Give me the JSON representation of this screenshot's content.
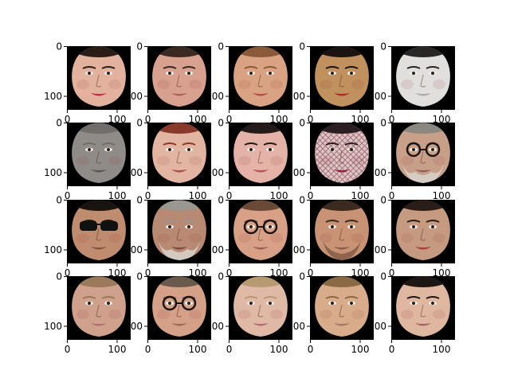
{
  "figure": {
    "background": "#ffffff",
    "panel_background": "#000000",
    "rows": 4,
    "cols": 5,
    "axis_tick_labels": {
      "x": [
        "0",
        "100"
      ],
      "y": [
        "0",
        "100"
      ]
    },
    "panels": [
      {
        "subject": "face",
        "details": "smiling woman, dark hair",
        "skin": "#e2b29e",
        "hair": "#2a1c16",
        "lips": "#c6304a",
        "accessory": "none",
        "sat": 1
      },
      {
        "subject": "face",
        "details": "smiling woman, dark hair",
        "skin": "#d8a08e",
        "hair": "#3a2a22",
        "lips": "#b85a62",
        "accessory": "none",
        "sat": 1
      },
      {
        "subject": "face",
        "details": "smiling woman, light brown hair",
        "skin": "#d9a282",
        "hair": "#8a5a3a",
        "lips": "#b8484a",
        "accessory": "none",
        "sat": 1
      },
      {
        "subject": "face",
        "details": "woman, dark hair, red lips",
        "skin": "#c0905e",
        "hair": "#1c1410",
        "lips": "#b0282e",
        "accessory": "none",
        "sat": 1
      },
      {
        "subject": "face",
        "details": "pale woman",
        "skin": "#e6ddd6",
        "hair": "#2a2624",
        "lips": "#c2a2a0",
        "accessory": "none",
        "sat": 0.2
      },
      {
        "subject": "face",
        "details": "older man, desaturated",
        "skin": "#9a8878",
        "hair": "#7a6a5c",
        "lips": "#6a5248",
        "accessory": "none",
        "sat": 0.2
      },
      {
        "subject": "face",
        "details": "woman, auburn hair",
        "skin": "#e2b4a2",
        "hair": "#8a3a2a",
        "lips": "#b04a4a",
        "accessory": "none",
        "sat": 1
      },
      {
        "subject": "face",
        "details": "smiling woman, dark eye makeup",
        "skin": "#e4b2a6",
        "hair": "#241a18",
        "lips": "#c04a5a",
        "accessory": "none",
        "sat": 1
      },
      {
        "subject": "face",
        "details": "woman with veil, red lips",
        "skin": "#e4c2c4",
        "hair": "#2a2024",
        "lips": "#a01e3c",
        "accessory": "veil",
        "sat": 1
      },
      {
        "subject": "face",
        "details": "man, round glasses, grey beard",
        "skin": "#c8a08a",
        "hair": "#8a8880",
        "lips": "#8a6258",
        "accessory": "glasses-beard",
        "sat": 1
      },
      {
        "subject": "face",
        "details": "man, sunglasses",
        "skin": "#c08c70",
        "hair": "#1a1410",
        "lips": "#8a5040",
        "accessory": "sunglasses",
        "sat": 1
      },
      {
        "subject": "face",
        "details": "man, grey beard",
        "skin": "#b88a74",
        "hair": "#9a9690",
        "lips": "#7a4a40",
        "accessory": "beard",
        "sat": 1
      },
      {
        "subject": "face",
        "details": "man, round glasses",
        "skin": "#d8a086",
        "hair": "#6a4a36",
        "lips": "#9a6050",
        "accessory": "glasses",
        "sat": 1
      },
      {
        "subject": "face",
        "details": "man, stubble",
        "skin": "#c89274",
        "hair": "#3a2a20",
        "lips": "#8a5a4a",
        "accessory": "stubble",
        "sat": 1
      },
      {
        "subject": "face",
        "details": "woman, dark hair, red lips",
        "skin": "#c69a80",
        "hair": "#2a1c16",
        "lips": "#b03a3a",
        "accessory": "none",
        "sat": 1
      },
      {
        "subject": "face",
        "details": "smiling woman, blond hair",
        "skin": "#cfa08c",
        "hair": "#9a7a5a",
        "lips": "#b07070",
        "accessory": "none",
        "sat": 1
      },
      {
        "subject": "face",
        "details": "man, glasses",
        "skin": "#d4a088",
        "hair": "#6a5a4c",
        "lips": "#9a6a5a",
        "accessory": "glasses",
        "sat": 1
      },
      {
        "subject": "face",
        "details": "woman, blond hair",
        "skin": "#e0b8a6",
        "hair": "#b89a72",
        "lips": "#b26a72",
        "accessory": "none",
        "sat": 1
      },
      {
        "subject": "face",
        "details": "young man",
        "skin": "#d8ac8a",
        "hair": "#8a6a44",
        "lips": "#a8746a",
        "accessory": "none",
        "sat": 1
      },
      {
        "subject": "face",
        "details": "woman, dark hair",
        "skin": "#dfb6a0",
        "hair": "#1e1614",
        "lips": "#a8606a",
        "accessory": "none",
        "sat": 1
      }
    ]
  }
}
